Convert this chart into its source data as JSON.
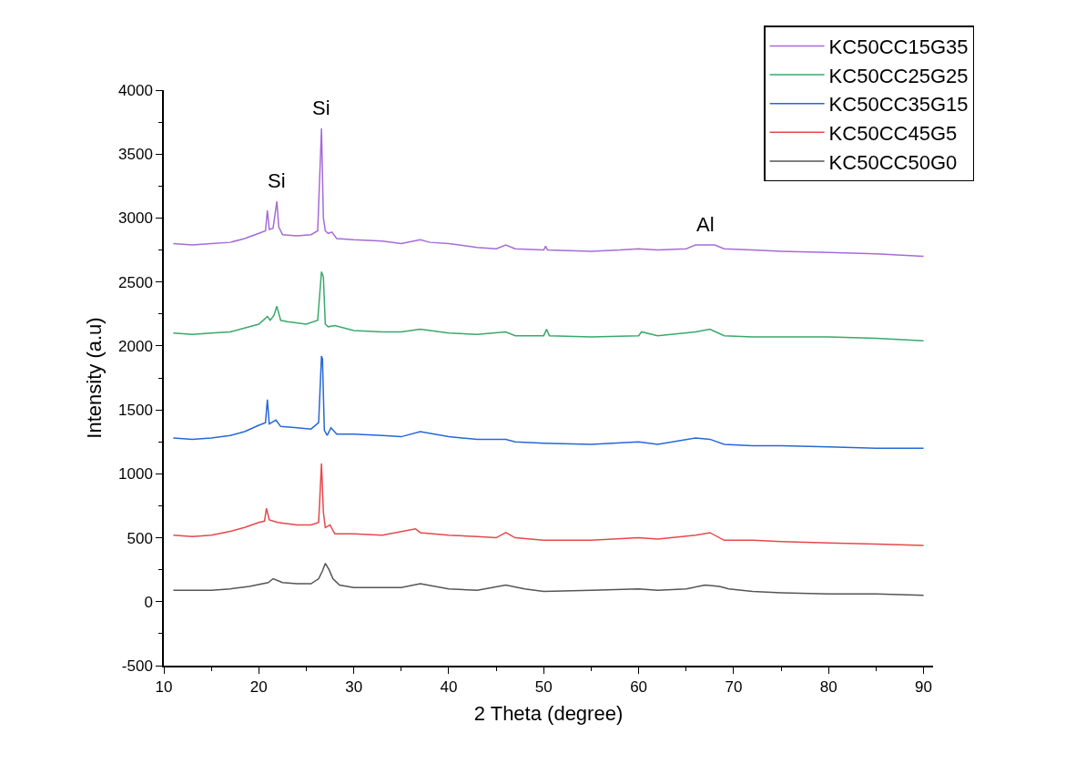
{
  "chart_data": {
    "type": "line",
    "xlabel": "2 Theta (degree)",
    "ylabel": "Intensity (a.u)",
    "xlim": [
      10,
      91
    ],
    "xticks": [
      10,
      20,
      30,
      40,
      50,
      60,
      70,
      80,
      90
    ],
    "ylim": [
      -500,
      4000
    ],
    "yticks": [
      -500,
      0,
      500,
      1000,
      1500,
      2000,
      2500,
      3000,
      3500,
      4000
    ],
    "grid": false,
    "legend": "top right",
    "marker": "none",
    "line_style": "solid",
    "annotations": [
      {
        "text": "Si",
        "x": 21.9,
        "y": 3130
      },
      {
        "text": "Si",
        "x": 26.6,
        "y": 3700
      },
      {
        "text": "Al",
        "x": 67,
        "y": 2790
      }
    ],
    "series": [
      {
        "name": "KC50CC15G35",
        "color": "#a66bd8",
        "x": [
          11,
          13,
          15,
          17,
          18.5,
          20,
          20.7,
          20.9,
          21.1,
          21.5,
          21.9,
          22.1,
          22.5,
          24,
          25.5,
          26.2,
          26.6,
          26.8,
          27,
          27.3,
          27.7,
          28.2,
          30,
          33,
          35,
          37,
          38,
          40,
          43,
          45,
          46,
          47,
          50,
          50.2,
          50.4,
          55,
          58,
          60,
          62,
          65,
          66,
          67,
          68,
          69,
          72,
          75,
          80,
          85,
          90
        ],
        "values": [
          2800,
          2790,
          2800,
          2810,
          2840,
          2880,
          2900,
          3060,
          2910,
          2920,
          3130,
          2930,
          2870,
          2860,
          2870,
          2900,
          3700,
          3000,
          2900,
          2880,
          2890,
          2840,
          2830,
          2820,
          2800,
          2830,
          2810,
          2800,
          2770,
          2760,
          2790,
          2760,
          2750,
          2780,
          2750,
          2740,
          2750,
          2760,
          2750,
          2760,
          2790,
          2790,
          2790,
          2760,
          2750,
          2740,
          2730,
          2720,
          2700
        ]
      },
      {
        "name": "KC50CC25G25",
        "color": "#3aa86b",
        "x": [
          11,
          13,
          15,
          17,
          18.5,
          20,
          20.9,
          21.2,
          21.6,
          21.9,
          22.3,
          23,
          25,
          26.2,
          26.6,
          26.8,
          27,
          27.3,
          28,
          30,
          33,
          35,
          37,
          40,
          43,
          46,
          47,
          50,
          50.3,
          50.6,
          55,
          60,
          60.3,
          62,
          66,
          67.5,
          69,
          72,
          75,
          80,
          85,
          90
        ],
        "values": [
          2100,
          2090,
          2100,
          2110,
          2140,
          2170,
          2230,
          2200,
          2240,
          2310,
          2200,
          2190,
          2170,
          2200,
          2580,
          2540,
          2170,
          2150,
          2160,
          2120,
          2110,
          2110,
          2130,
          2100,
          2090,
          2110,
          2080,
          2080,
          2130,
          2080,
          2070,
          2080,
          2110,
          2080,
          2110,
          2130,
          2080,
          2070,
          2070,
          2070,
          2060,
          2040
        ]
      },
      {
        "name": "KC50CC35G15",
        "color": "#2568d6",
        "x": [
          11,
          13,
          15,
          17,
          18.5,
          20,
          20.7,
          20.9,
          21.1,
          21.8,
          22.3,
          24,
          25.5,
          26.3,
          26.6,
          26.7,
          26.9,
          27.2,
          27.6,
          28.2,
          30,
          33,
          35,
          37,
          40,
          43,
          46,
          47,
          50,
          55,
          60,
          62,
          66,
          67.5,
          69,
          72,
          75,
          80,
          85,
          90
        ],
        "values": [
          1280,
          1270,
          1280,
          1300,
          1330,
          1380,
          1400,
          1580,
          1390,
          1420,
          1370,
          1360,
          1350,
          1400,
          1920,
          1900,
          1340,
          1300,
          1360,
          1310,
          1310,
          1300,
          1290,
          1330,
          1290,
          1270,
          1270,
          1250,
          1240,
          1230,
          1250,
          1230,
          1280,
          1270,
          1230,
          1220,
          1220,
          1210,
          1200,
          1200
        ]
      },
      {
        "name": "KC50CC45G5",
        "color": "#e8474a",
        "x": [
          11,
          13,
          15,
          17,
          18.5,
          20,
          20.6,
          20.8,
          21.1,
          22,
          24,
          25.5,
          26.3,
          26.6,
          26.8,
          27,
          27.5,
          28,
          30,
          33,
          36.5,
          37,
          40,
          43,
          45,
          46,
          47,
          50,
          55,
          60,
          62,
          66,
          67.5,
          69,
          72,
          75,
          80,
          85,
          90
        ],
        "values": [
          520,
          510,
          520,
          550,
          580,
          620,
          630,
          730,
          640,
          620,
          600,
          600,
          620,
          1080,
          700,
          580,
          600,
          530,
          530,
          520,
          570,
          540,
          520,
          510,
          500,
          540,
          500,
          480,
          480,
          500,
          490,
          520,
          540,
          480,
          480,
          470,
          460,
          450,
          440
        ]
      },
      {
        "name": "KC50CC50G0",
        "color": "#555555",
        "x": [
          11,
          13,
          15,
          17,
          19,
          21,
          21.5,
          22.5,
          24,
          25.5,
          26.3,
          26.7,
          27,
          27.4,
          27.8,
          28.5,
          30,
          33,
          35,
          37,
          40,
          43,
          46,
          48,
          50,
          55,
          60,
          62,
          65,
          67,
          68.5,
          69.5,
          72,
          75,
          80,
          85,
          90
        ],
        "values": [
          90,
          90,
          90,
          100,
          120,
          150,
          180,
          150,
          140,
          140,
          180,
          240,
          300,
          250,
          180,
          130,
          110,
          110,
          110,
          140,
          100,
          90,
          130,
          100,
          80,
          90,
          100,
          90,
          100,
          130,
          120,
          100,
          80,
          70,
          60,
          60,
          50
        ]
      }
    ]
  }
}
